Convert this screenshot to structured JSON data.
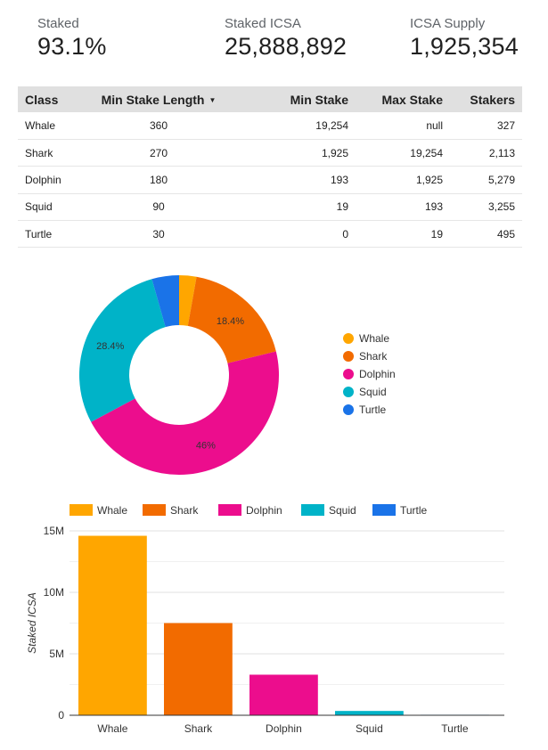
{
  "kpis": [
    {
      "label": "Staked",
      "value": "93.1%"
    },
    {
      "label": "Staked ICSA",
      "value": "25,888,892"
    },
    {
      "label": "ICSA Supply",
      "value": "1,925,354"
    }
  ],
  "table": {
    "headers": [
      "Class",
      "Min Stake Length",
      "Min Stake",
      "Max Stake",
      "Stakers"
    ],
    "sort_icon": "sort-desc-icon",
    "rows": [
      [
        "Whale",
        "360",
        "19,254",
        "null",
        "327"
      ],
      [
        "Shark",
        "270",
        "1,925",
        "19,254",
        "2,113"
      ],
      [
        "Dolphin",
        "180",
        "193",
        "1,925",
        "5,279"
      ],
      [
        "Squid",
        "90",
        "19",
        "193",
        "3,255"
      ],
      [
        "Turtle",
        "30",
        "0",
        "19",
        "495"
      ]
    ]
  },
  "colors": {
    "Whale": "#ffa600",
    "Shark": "#f26b00",
    "Dolphin": "#ec0d8d",
    "Squid": "#00b3c8",
    "Turtle": "#1a73e8"
  },
  "chart_data": [
    {
      "type": "pie",
      "donut": true,
      "categories": [
        "Whale",
        "Shark",
        "Dolphin",
        "Squid",
        "Turtle"
      ],
      "values": [
        2.8,
        18.4,
        46,
        28.4,
        4.4
      ],
      "labels": [
        "",
        "18.4%",
        "46%",
        "28.4%",
        ""
      ],
      "legend_position": "right"
    },
    {
      "type": "bar",
      "categories": [
        "Whale",
        "Shark",
        "Dolphin",
        "Squid",
        "Turtle"
      ],
      "values": [
        14600000,
        7500000,
        3300000,
        350000,
        40000
      ],
      "ylabel": "Staked ICSA",
      "xlabel": "",
      "ylim": [
        0,
        15000000
      ],
      "yticks": [
        0,
        5000000,
        10000000,
        15000000
      ],
      "ytick_labels": [
        "0",
        "5M",
        "10M",
        "15M"
      ],
      "legend_position": "top",
      "grid": true
    }
  ]
}
